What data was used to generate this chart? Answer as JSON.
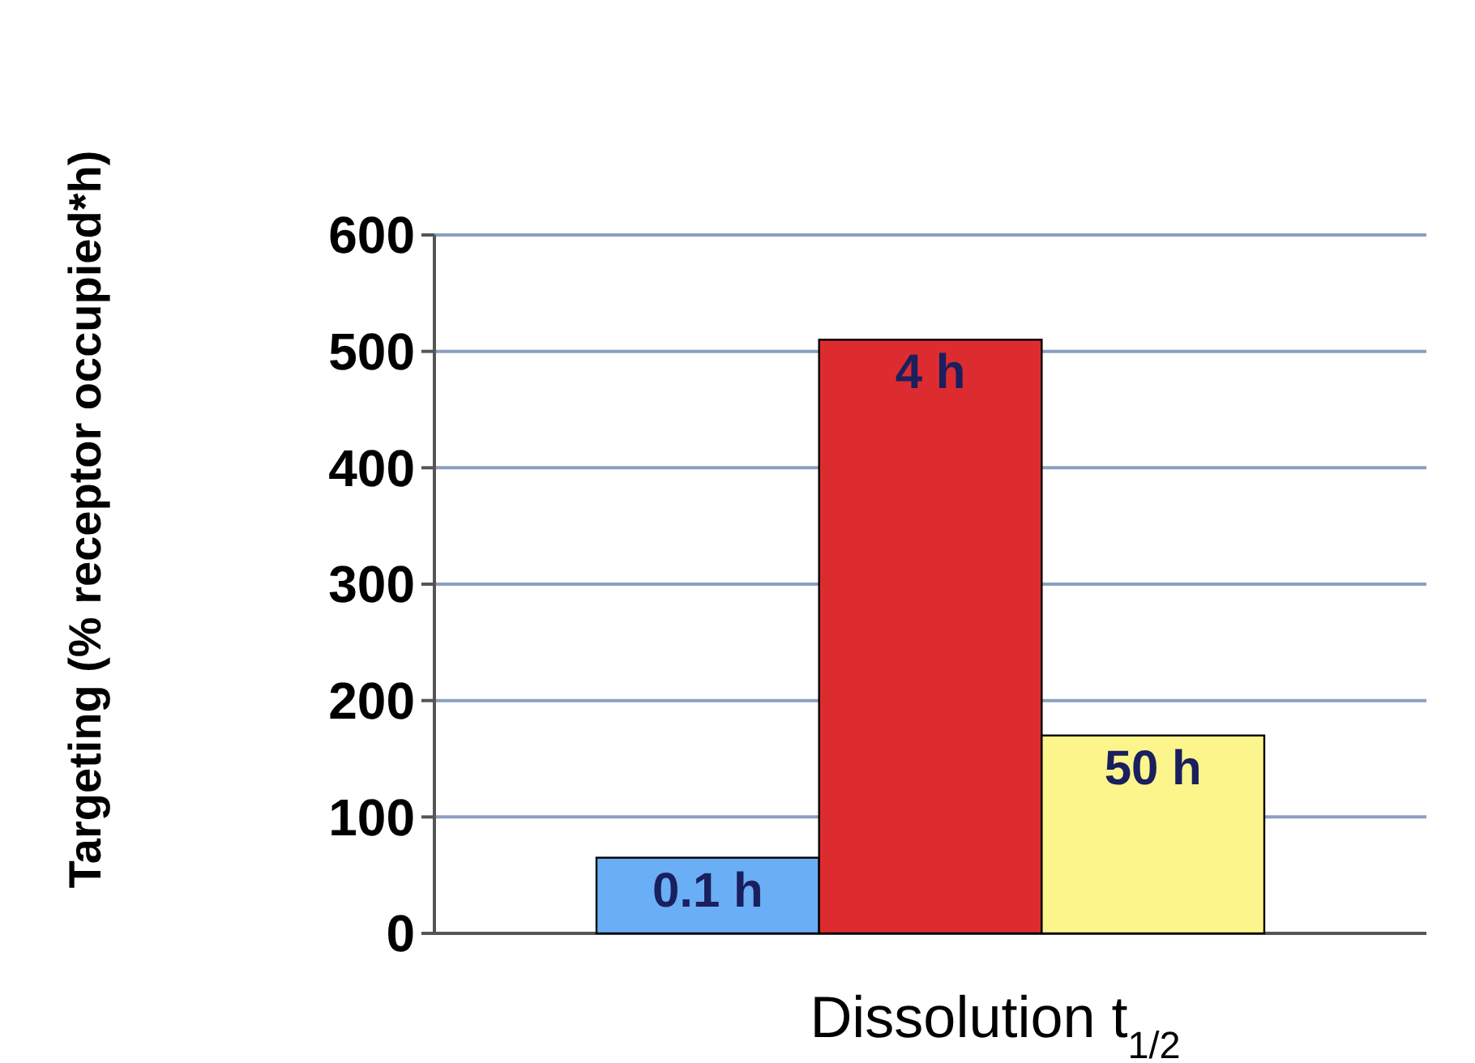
{
  "chart_data": {
    "type": "bar",
    "xlabel": "Dissolution t$_{1/2}$",
    "ylabel": "Targeting (% receptor occupied*h)",
    "categories": [
      "0.1 h",
      "4 h",
      "50 h"
    ],
    "values": [
      65,
      510,
      170
    ],
    "colors": [
      "#6aaef5",
      "#dd2c2f",
      "#fbf58c"
    ],
    "ylim": [
      0,
      600
    ],
    "yticks": [
      0,
      100,
      200,
      300,
      400,
      500,
      600
    ],
    "grid": "y"
  }
}
